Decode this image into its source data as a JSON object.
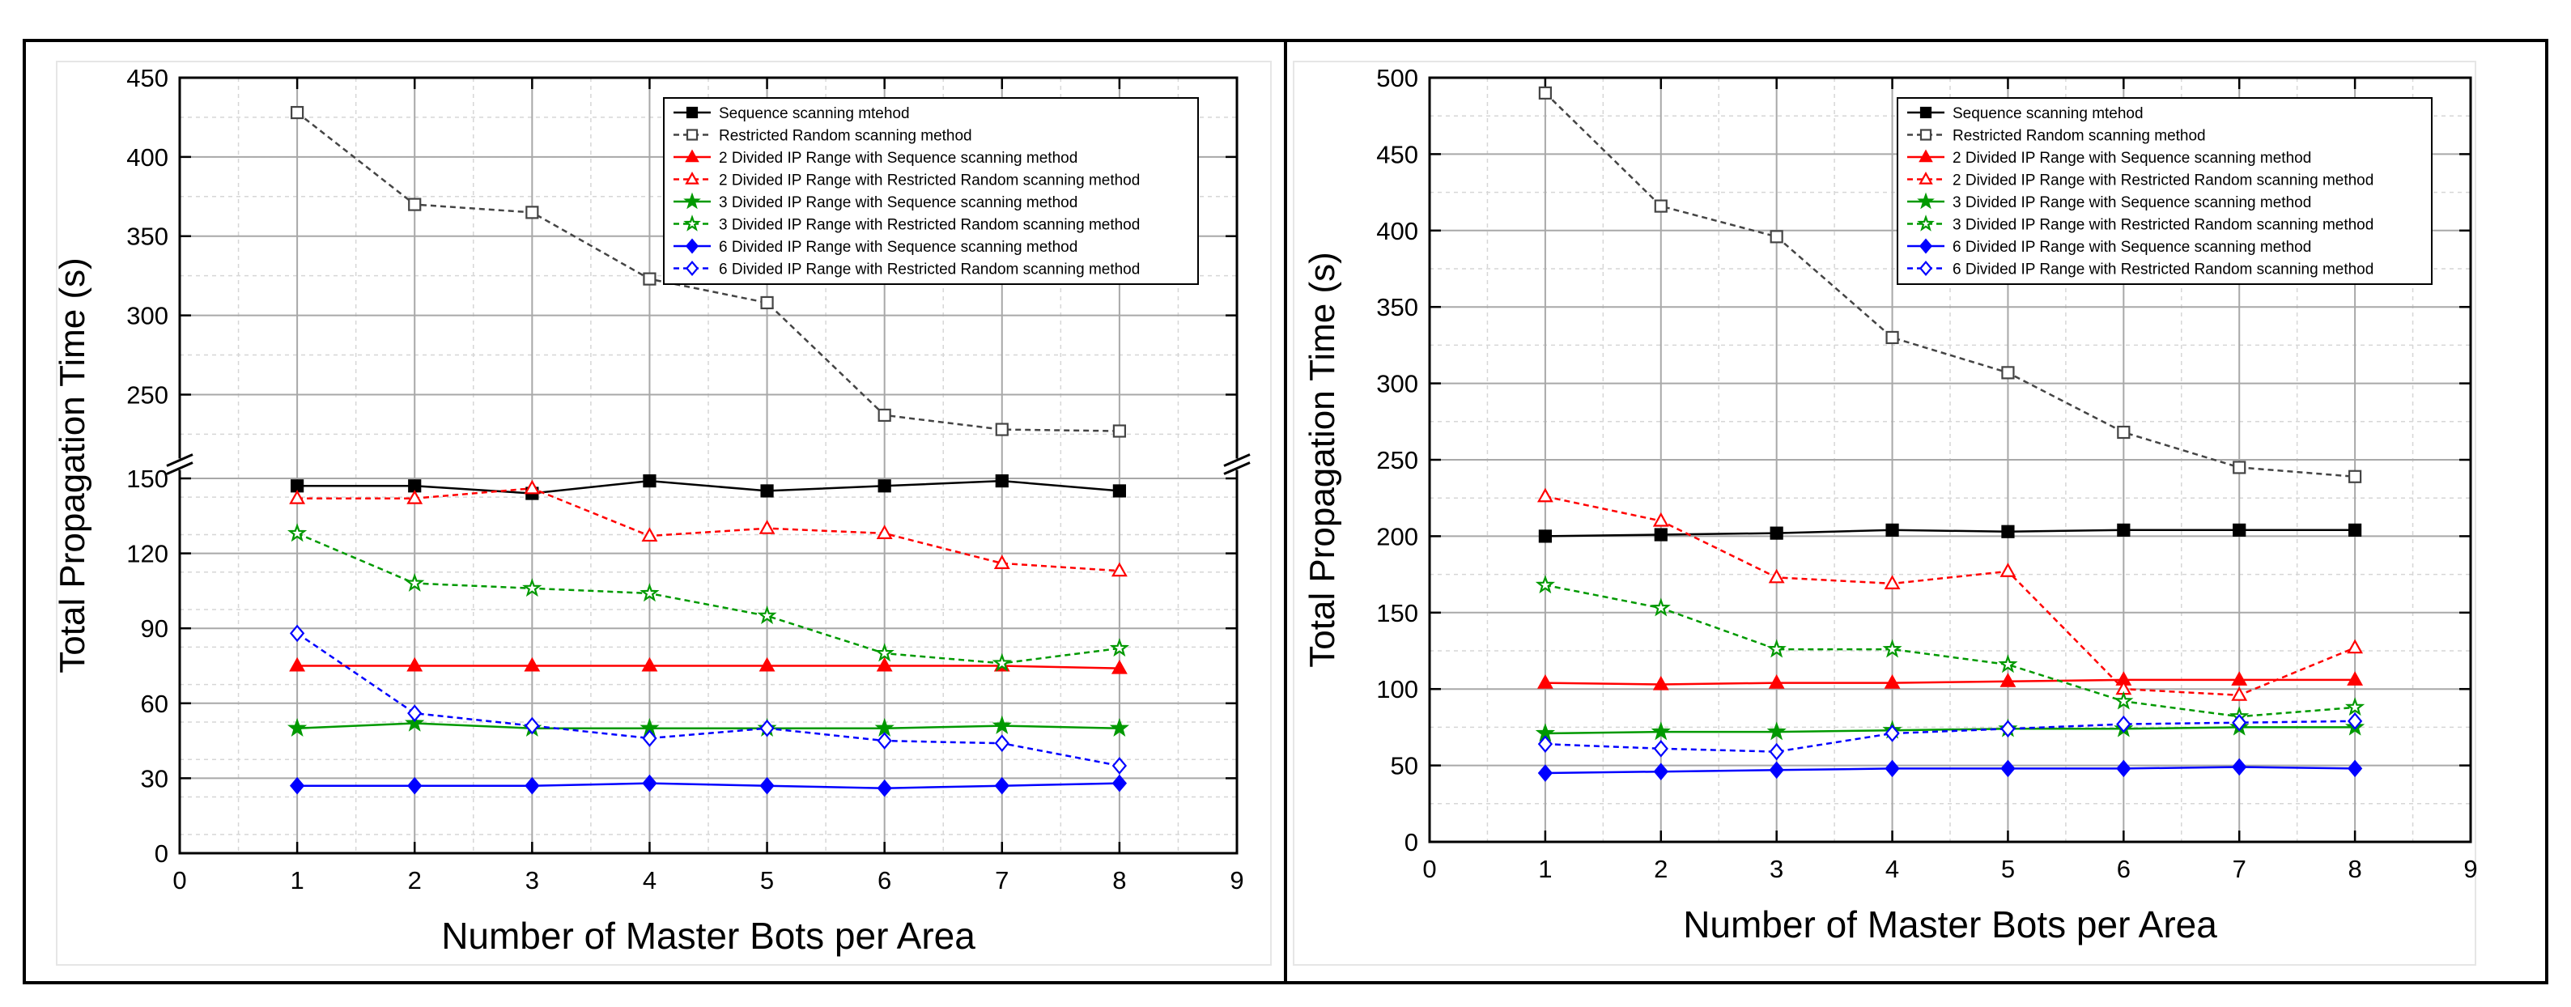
{
  "chart_data": [
    {
      "type": "line",
      "xlabel": "Number of Master Bots per Area",
      "ylabel": "Total Propagation Time (s)",
      "xlim": [
        0,
        9
      ],
      "x_ticks": [
        "0",
        "1",
        "2",
        "3",
        "4",
        "5",
        "6",
        "7",
        "8",
        "9"
      ],
      "y_axis_broken": true,
      "y_lower_range": [
        0,
        150
      ],
      "y_lower_ticks": [
        "0",
        "30",
        "60",
        "90",
        "120",
        "150"
      ],
      "y_upper_range": [
        215,
        450
      ],
      "y_upper_ticks": [
        "250",
        "300",
        "350",
        "400",
        "450"
      ],
      "grid": true,
      "legend_position": "top-right",
      "x": [
        1,
        2,
        3,
        4,
        5,
        6,
        7,
        8
      ],
      "series": [
        {
          "name": "Sequence scanning mtehod",
          "color": "#000000",
          "marker": "square",
          "filled": true,
          "dashed": false,
          "values": [
            147,
            147,
            144,
            149,
            145,
            147,
            149,
            145
          ]
        },
        {
          "name": "Restricted Random scanning method",
          "color": "#444444",
          "marker": "square",
          "filled": false,
          "dashed": true,
          "values": [
            428,
            370,
            365,
            323,
            308,
            237,
            228,
            227
          ]
        },
        {
          "name": "2 Divided IP Range with Sequence scanning method",
          "color": "#ff0000",
          "marker": "triangle",
          "filled": true,
          "dashed": false,
          "values": [
            75,
            75,
            75,
            75,
            75,
            75,
            75,
            74
          ]
        },
        {
          "name": "2 Divided IP Range with Restricted Random scanning method",
          "color": "#ff0000",
          "marker": "triangle",
          "filled": false,
          "dashed": true,
          "values": [
            142,
            142,
            146,
            127,
            130,
            128,
            116,
            113
          ]
        },
        {
          "name": "3 Divided IP Range with Sequence scanning method",
          "color": "#009900",
          "marker": "star",
          "filled": true,
          "dashed": false,
          "values": [
            50,
            52,
            50,
            50,
            50,
            50,
            51,
            50
          ]
        },
        {
          "name": "3 Divided IP Range with Restricted Random scanning method",
          "color": "#009900",
          "marker": "star",
          "filled": false,
          "dashed": true,
          "values": [
            128,
            108,
            106,
            104,
            95,
            80,
            76,
            82
          ]
        },
        {
          "name": "6 Divided IP Range with Sequence scanning method",
          "color": "#0000ff",
          "marker": "diamond",
          "filled": true,
          "dashed": false,
          "values": [
            27,
            27,
            27,
            28,
            27,
            26,
            27,
            28
          ]
        },
        {
          "name": "6 Divided IP Range with Restricted Random scanning method",
          "color": "#0000ff",
          "marker": "diamond",
          "filled": false,
          "dashed": true,
          "values": [
            88,
            56,
            51,
            46,
            50,
            45,
            44,
            35
          ]
        }
      ]
    },
    {
      "type": "line",
      "xlabel": "Number of Master Bots per Area",
      "ylabel": "Total Propagation Time (s)",
      "xlim": [
        0,
        9
      ],
      "ylim": [
        0,
        500
      ],
      "x_ticks": [
        "0",
        "1",
        "2",
        "3",
        "4",
        "5",
        "6",
        "7",
        "8",
        "9"
      ],
      "y_ticks": [
        "0",
        "50",
        "100",
        "150",
        "200",
        "250",
        "300",
        "350",
        "400",
        "450",
        "500"
      ],
      "grid": true,
      "legend_position": "top-right",
      "x": [
        1,
        2,
        3,
        4,
        5,
        6,
        7,
        8
      ],
      "series": [
        {
          "name": "Sequence scanning mtehod",
          "color": "#000000",
          "marker": "square",
          "filled": true,
          "dashed": false,
          "values": [
            200,
            201,
            202,
            204,
            203,
            204,
            204,
            204
          ]
        },
        {
          "name": "Restricted Random scanning method",
          "color": "#444444",
          "marker": "square",
          "filled": false,
          "dashed": true,
          "values": [
            490,
            416,
            396,
            330,
            307,
            268,
            245,
            239
          ]
        },
        {
          "name": "2 Divided IP Range with Sequence scanning method",
          "color": "#ff0000",
          "marker": "triangle",
          "filled": true,
          "dashed": false,
          "values": [
            104,
            103,
            104,
            104,
            105,
            106,
            106,
            106
          ]
        },
        {
          "name": "2 Divided IP Range with Restricted Random scanning method",
          "color": "#ff0000",
          "marker": "triangle",
          "filled": false,
          "dashed": true,
          "values": [
            226,
            210,
            173,
            169,
            177,
            100,
            96,
            127
          ]
        },
        {
          "name": "3 Divided IP Range with Sequence scanning method",
          "color": "#009900",
          "marker": "star",
          "filled": true,
          "dashed": false,
          "values": [
            71,
            72,
            72,
            73,
            74,
            74,
            75,
            75
          ]
        },
        {
          "name": "3 Divided IP Range with Restricted Random scanning method",
          "color": "#009900",
          "marker": "star",
          "filled": false,
          "dashed": true,
          "values": [
            168,
            153,
            126,
            126,
            116,
            92,
            82,
            88
          ]
        },
        {
          "name": "6 Divided IP Range with Sequence scanning method",
          "color": "#0000ff",
          "marker": "diamond",
          "filled": true,
          "dashed": false,
          "values": [
            45,
            46,
            47,
            48,
            48,
            48,
            49,
            48
          ]
        },
        {
          "name": "6 Divided IP Range with Restricted Random scanning method",
          "color": "#0000ff",
          "marker": "diamond",
          "filled": false,
          "dashed": true,
          "values": [
            64,
            61,
            59,
            71,
            74,
            77,
            78,
            79
          ]
        }
      ]
    }
  ]
}
